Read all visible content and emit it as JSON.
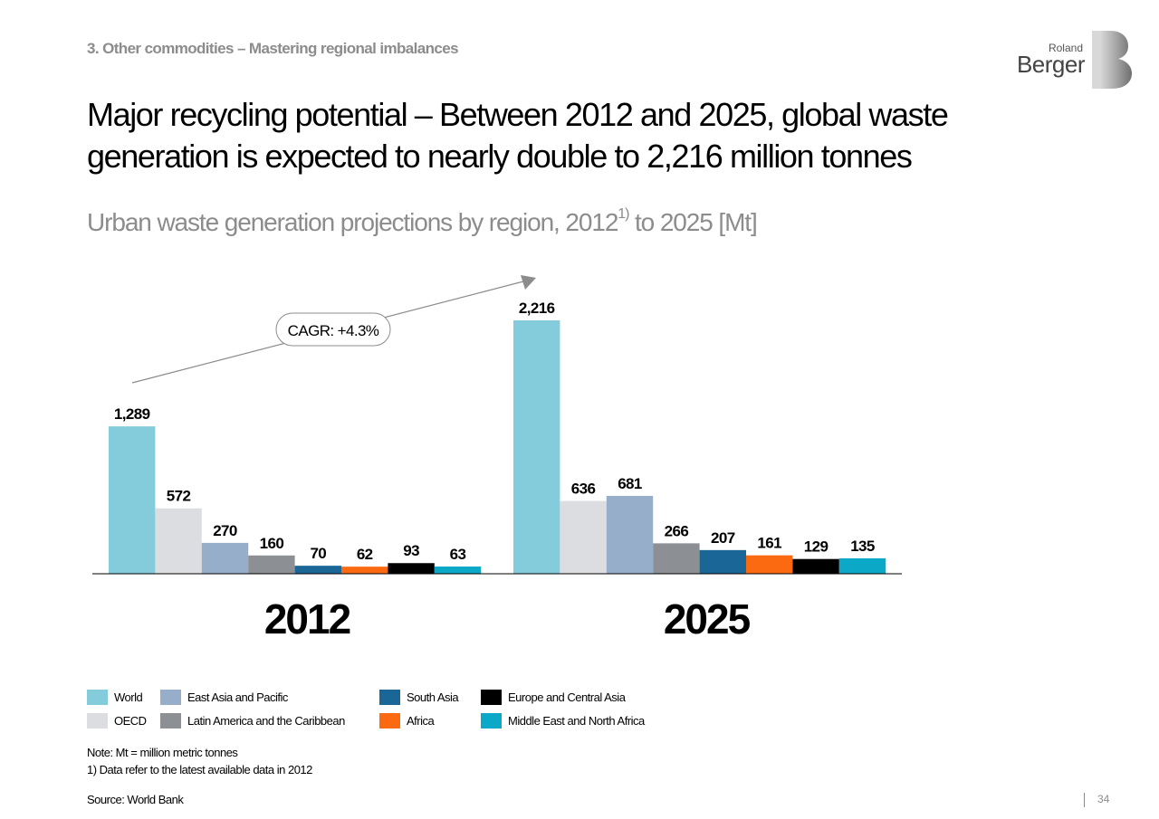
{
  "header": {
    "section": "3. Other commodities – Mastering regional imbalances",
    "logo_small": "Roland",
    "logo_large": "Berger"
  },
  "slide": {
    "title": "Major recycling potential – Between 2012 and 2025, global waste generation is expected to nearly double to 2,216 million tonnes",
    "subtitle_main": "Urban waste generation projections by region, 2012",
    "subtitle_sup": "1)",
    "subtitle_tail": " to 2025 [Mt]"
  },
  "chart_data": {
    "type": "bar",
    "groups": [
      "2012",
      "2025"
    ],
    "series": [
      {
        "name": "World",
        "color": "#84cbdc",
        "values": [
          1289,
          2216
        ],
        "labels": [
          "1,289",
          "2,216"
        ]
      },
      {
        "name": "OECD",
        "color": "#dcdde1",
        "values": [
          572,
          636
        ],
        "labels": [
          "572",
          "636"
        ]
      },
      {
        "name": "East Asia and Pacific",
        "color": "#97aecb",
        "values": [
          270,
          681
        ],
        "labels": [
          "270",
          "681"
        ]
      },
      {
        "name": "Latin America and the Caribbean",
        "color": "#8c8f94",
        "values": [
          160,
          266
        ],
        "labels": [
          "160",
          "266"
        ]
      },
      {
        "name": "South Asia",
        "color": "#1a6797",
        "values": [
          70,
          207
        ],
        "labels": [
          "70",
          "207"
        ]
      },
      {
        "name": "Africa",
        "color": "#fb6a10",
        "values": [
          62,
          161
        ],
        "labels": [
          "62",
          "161"
        ]
      },
      {
        "name": "Europe and Central Asia",
        "color": "#000000",
        "values": [
          93,
          129
        ],
        "labels": [
          "93",
          "129"
        ]
      },
      {
        "name": "Middle East and North Africa",
        "color": "#0ba9c7",
        "values": [
          63,
          135
        ],
        "labels": [
          "63",
          "135"
        ]
      }
    ],
    "annotation": "CAGR: +4.3%",
    "legend_position": "bottom-left",
    "grid": false
  },
  "notes": {
    "line1": "Note: Mt = million metric tonnes",
    "line2": "1) Data refer to the latest available data in 2012"
  },
  "source": "Source: World Bank",
  "page_number": "34"
}
